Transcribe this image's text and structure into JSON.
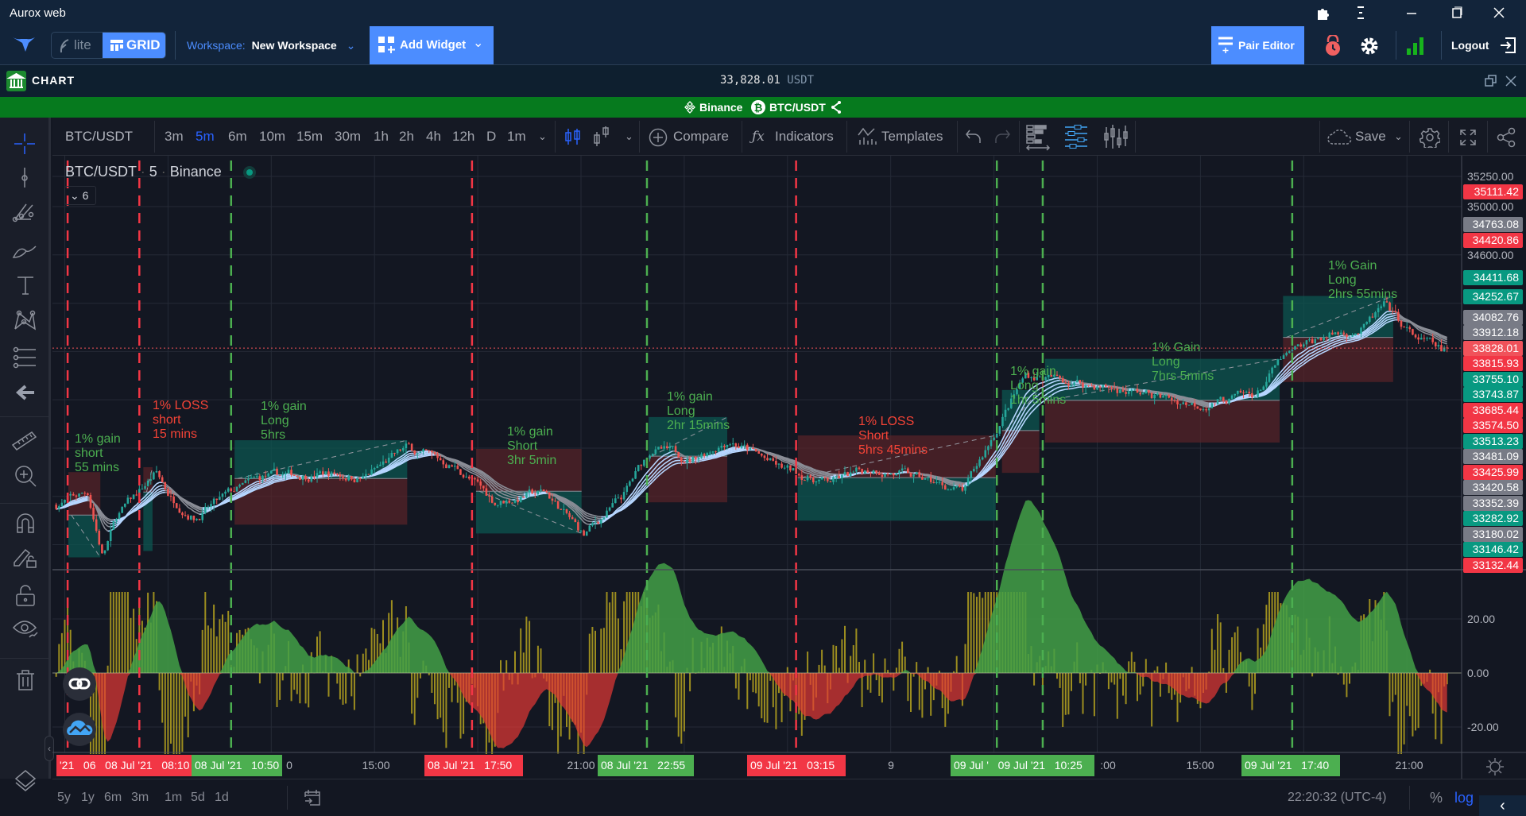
{
  "window": {
    "title": "Aurox web"
  },
  "appbar": {
    "mode_lite": "lite",
    "mode_grid": "GRID",
    "workspace_label": "Workspace:",
    "workspace_name": "New Workspace",
    "add_widget": "Add Widget",
    "pair_editor": "Pair Editor",
    "logout": "Logout",
    "accent": "#4c8dff"
  },
  "chart_header": {
    "title": "CHART",
    "price": "33,828.01",
    "currency": "USDT"
  },
  "pair_bar": {
    "exchange": "Binance",
    "pair": "BTC/USDT",
    "color": "#067a1e"
  },
  "toolbar": {
    "symbol": "BTC/USDT",
    "intervals": [
      "3m",
      "5m",
      "6m",
      "10m",
      "15m",
      "30m",
      "1h",
      "2h",
      "4h",
      "12h",
      "D",
      "1m"
    ],
    "active_interval": "5m",
    "compare": "Compare",
    "indicators": "Indicators",
    "templates": "Templates",
    "save": "Save"
  },
  "legend": {
    "symbol": "BTC/USDT",
    "interval": "5",
    "exchange": "Binance",
    "indicator_count": "6"
  },
  "price_axis": {
    "scale": "log",
    "grid_labels": [
      "35250.00",
      "35000.00",
      "34600.00"
    ],
    "tags": [
      {
        "v": "35111.42",
        "c": "red"
      },
      {
        "v": "34763.08",
        "c": "gray"
      },
      {
        "v": "34420.86",
        "c": "red"
      },
      {
        "v": "34411.68",
        "c": "green"
      },
      {
        "v": "34252.67",
        "c": "green"
      },
      {
        "v": "34082.76",
        "c": "gray"
      },
      {
        "v": "33912.18",
        "c": "gray"
      },
      {
        "v": "33828.01",
        "c": "current"
      },
      {
        "v": "33815.93",
        "c": "red"
      },
      {
        "v": "33755.10",
        "c": "green"
      },
      {
        "v": "33743.87",
        "c": "green"
      },
      {
        "v": "33685.44",
        "c": "red"
      },
      {
        "v": "33574.50",
        "c": "red"
      },
      {
        "v": "33513.23",
        "c": "green"
      },
      {
        "v": "33481.09",
        "c": "gray"
      },
      {
        "v": "33425.99",
        "c": "red"
      },
      {
        "v": "33420.58",
        "c": "gray"
      },
      {
        "v": "33352.39",
        "c": "gray"
      },
      {
        "v": "33282.92",
        "c": "green"
      },
      {
        "v": "33180.02",
        "c": "gray"
      },
      {
        "v": "33146.42",
        "c": "green"
      },
      {
        "v": "33132.44",
        "c": "red"
      }
    ],
    "colors": {
      "red": "#f23645",
      "green": "#089981",
      "gray": "#787b86",
      "current": "#f0525a"
    }
  },
  "oscillator_axis": {
    "labels": [
      "20.00",
      "0.00",
      "-20.00"
    ]
  },
  "chart_data": {
    "type": "candlestick",
    "interval": "5m",
    "current_price": 33828.01,
    "price_path": [
      [
        "08 Jul 05:45",
        32531
      ],
      [
        "08 Jul 06:40",
        32636
      ],
      [
        "08 Jul 07:06",
        32108
      ],
      [
        "08 Jul 07:31",
        32432
      ],
      [
        "08 Jul 08:39",
        32795
      ],
      [
        "08 Jul 09:04",
        32597
      ],
      [
        "08 Jul 09:47",
        32432
      ],
      [
        "08 Jul 10:54",
        32636
      ],
      [
        "08 Jul 11:46",
        32755
      ],
      [
        "08 Jul 13:38",
        32795
      ],
      [
        "08 Jul 14:41",
        32755
      ],
      [
        "08 Jul 15:57",
        33000
      ],
      [
        "08 Jul 17:25",
        32834
      ],
      [
        "08 Jul 18:31",
        32551
      ],
      [
        "08 Jul 19:58",
        32636
      ],
      [
        "08 Jul 21:05",
        32273
      ],
      [
        "08 Jul 22:13",
        32597
      ],
      [
        "08 Jul 23:03",
        33000
      ],
      [
        "09 Jul 00:11",
        32914
      ],
      [
        "09 Jul 01:19",
        33079
      ],
      [
        "09 Jul 02:45",
        32834
      ],
      [
        "09 Jul 04:09",
        32716
      ],
      [
        "09 Jul 05:34",
        32834
      ],
      [
        "09 Jul 07:10",
        32716
      ],
      [
        "09 Jul 08:08",
        32636
      ],
      [
        "09 Jul 09:04",
        33158
      ],
      [
        "09 Jul 09:55",
        33607
      ],
      [
        "09 Jul 11:03",
        33560
      ],
      [
        "09 Jul 12:45",
        33481
      ],
      [
        "09 Jul 14:55",
        33362
      ],
      [
        "09 Jul 16:37",
        33442
      ],
      [
        "09 Jul 17:20",
        33726
      ],
      [
        "09 Jul 18:37",
        33930
      ],
      [
        "09 Jul 19:45",
        33990
      ],
      [
        "09 Jul 20:19",
        34168
      ],
      [
        "09 Jul 21:10",
        33930
      ],
      [
        "09 Jul 22:00",
        33805
      ]
    ],
    "signals": [
      {
        "t": "08 Jul 06:05",
        "c": "red"
      },
      {
        "t": "08 Jul 08:10",
        "c": "red"
      },
      {
        "t": "08 Jul 10:50",
        "c": "green"
      },
      {
        "t": "08 Jul 17:50",
        "c": "red"
      },
      {
        "t": "08 Jul 22:55",
        "c": "green"
      },
      {
        "t": "09 Jul 03:15",
        "c": "red"
      },
      {
        "t": "09 Jul 09:05",
        "c": "green"
      },
      {
        "t": "09 Jul 10:25",
        "c": "green"
      },
      {
        "t": "09 Jul 17:40",
        "c": "green"
      }
    ],
    "positions": [
      {
        "side": "short",
        "start": "08 Jul 06:06",
        "end": "08 Jul 07:02",
        "stop": 32801,
        "entry": 32445,
        "target": 32095,
        "label": [
          "1% gain",
          "short",
          "55 mins"
        ],
        "result": "gain"
      },
      {
        "side": "short",
        "start": "08 Jul 08:17",
        "end": "08 Jul 08:33",
        "stop": 32842,
        "entry": 32636,
        "target": 32148,
        "label": [
          "1% LOSS",
          "short",
          "15 mins"
        ],
        "result": "loss"
      },
      {
        "side": "long",
        "start": "08 Jul 10:56",
        "end": "08 Jul 15:57",
        "target": 33065,
        "entry": 32748,
        "stop": 32366,
        "label": [
          "1% gain",
          "Long",
          "5hrs"
        ],
        "result": "gain"
      },
      {
        "side": "short",
        "start": "08 Jul 17:57",
        "end": "08 Jul 21:01",
        "stop": 32993,
        "entry": 32643,
        "target": 32293,
        "label": [
          "1% gain",
          "Short",
          "3hr 5min"
        ],
        "result": "gain"
      },
      {
        "side": "long",
        "start": "08 Jul 22:58",
        "end": "09 Jul 01:15",
        "target": 33257,
        "entry": 32933,
        "stop": 32551,
        "label": [
          "1% gain",
          "Long",
          "2hr 15mins"
        ],
        "result": "gain"
      },
      {
        "side": "short",
        "start": "09 Jul 03:18",
        "end": "09 Jul 09:03",
        "stop": 33105,
        "entry": 32755,
        "target": 32399,
        "label": [
          "1% LOSS",
          "Short",
          "5hrs 45mins"
        ],
        "result": "loss"
      },
      {
        "side": "long",
        "start": "09 Jul 09:14",
        "end": "09 Jul 10:19",
        "target": 33481,
        "entry": 33145,
        "stop": 32795,
        "label": [
          "1% gain",
          "Long",
          "1hr 5mins"
        ],
        "result": "gain"
      },
      {
        "side": "long",
        "start": "09 Jul 10:29",
        "end": "09 Jul 17:18",
        "target": 33739,
        "entry": 33395,
        "stop": 33046,
        "label": [
          "1% Gain",
          "Long",
          "7hrs 5mins"
        ],
        "result": "gain"
      },
      {
        "side": "long",
        "start": "09 Jul 17:24",
        "end": "09 Jul 20:36",
        "target": 34260,
        "entry": 33917,
        "stop": 33547,
        "label": [
          "1% Gain",
          "Long",
          "2hrs 55mins"
        ],
        "result": "gain"
      }
    ]
  },
  "time_axis": {
    "labels": [
      {
        "text": "'21   06   08 Jul '21   08:10",
        "c": "red"
      },
      {
        "text": "08 Jul '21   10:50",
        "c": "green"
      },
      {
        "text": "0",
        "c": ""
      },
      {
        "text": "15:00",
        "c": ""
      },
      {
        "text": "08 Jul '21   17:50",
        "c": "red"
      },
      {
        "text": "21:00",
        "c": ""
      },
      {
        "text": "08 Jul '21   22:55",
        "c": "green"
      },
      {
        "text": "09 Jul '21   03:15",
        "c": "red"
      },
      {
        "text": "9",
        "c": ""
      },
      {
        "text": "09 Jul '   09 Jul '21   10:25",
        "c": "green"
      },
      {
        "text": ":00",
        "c": ""
      },
      {
        "text": "15:00",
        "c": ""
      },
      {
        "text": "09 Jul '21   17:40",
        "c": "green"
      },
      {
        "text": "21:00",
        "c": ""
      }
    ]
  },
  "bottom": {
    "ranges": [
      "5y",
      "1y",
      "6m",
      "3m",
      "1m",
      "5d",
      "1d"
    ],
    "clock": "22:20:32 (UTC-4)",
    "percent": "%",
    "log": "log"
  }
}
